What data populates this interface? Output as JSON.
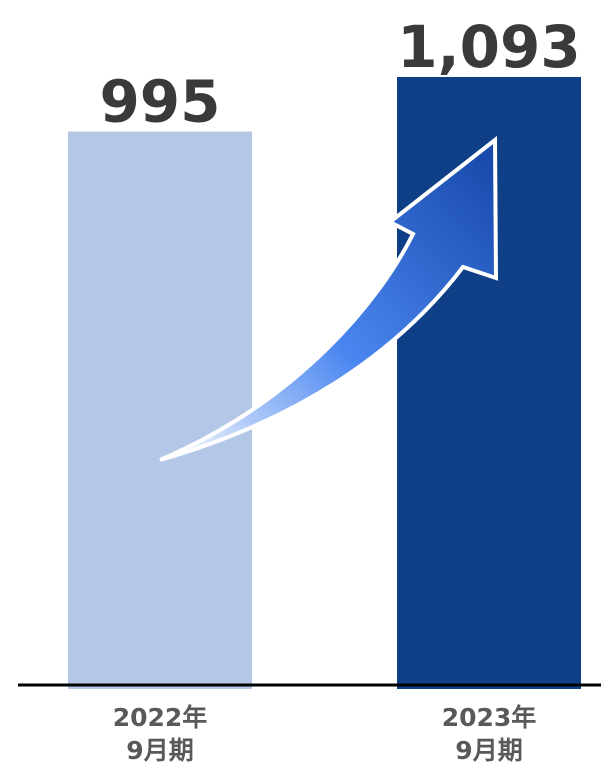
{
  "chart_data": {
    "type": "bar",
    "categories": [
      [
        "2022年",
        "9月期"
      ],
      [
        "2023年",
        "9月期"
      ]
    ],
    "values": [
      995,
      1093
    ],
    "value_labels": [
      "995",
      "1,093"
    ],
    "bar_colors": [
      "#b4c7e7",
      "#0f3f87"
    ],
    "title": "",
    "xlabel": "",
    "ylabel": "",
    "grid": false,
    "legend": "none",
    "annotation": "up-trend-arrow"
  },
  "colors": {
    "axis": "#000000",
    "value_text": "#3a3a3a",
    "category_text": "#595959",
    "arrow_light": "#ffffff",
    "arrow_mid": "#4a86f0",
    "arrow_dark": "#1546a8"
  }
}
